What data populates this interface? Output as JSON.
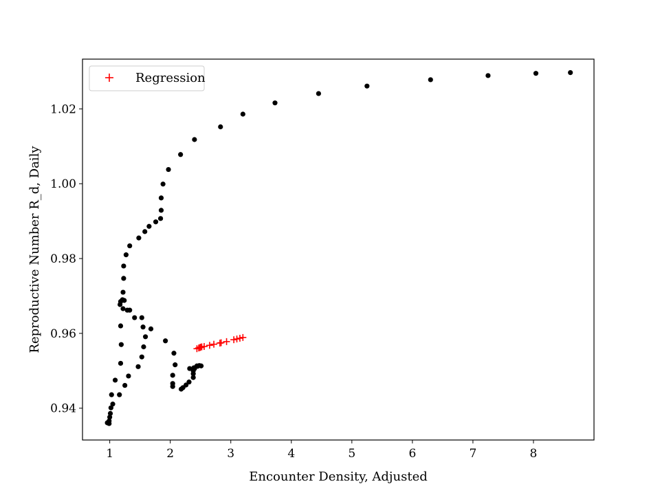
{
  "chart_data": {
    "type": "scatter",
    "title": "",
    "xlabel": "Encounter Density, Adjusted",
    "ylabel": "Reproductive Number R_d, Daily",
    "xlim": [
      0.55,
      9.0
    ],
    "ylim": [
      0.9315,
      1.0333
    ],
    "xticks": [
      1,
      2,
      3,
      4,
      5,
      6,
      7,
      8
    ],
    "yticks": [
      0.94,
      0.96,
      0.98,
      1.0,
      1.02
    ],
    "ytick_labels": [
      "0.94",
      "0.96",
      "0.98",
      "1.00",
      "1.02"
    ],
    "grid": false,
    "legend_position": "top-left",
    "series": [
      {
        "marker": "circle",
        "color": "#000000",
        "x": [
          8.61,
          8.04,
          7.25,
          6.3,
          5.25,
          4.45,
          3.73,
          3.2,
          2.83,
          2.4,
          2.17,
          1.97,
          1.88,
          1.85,
          1.85,
          1.84,
          1.76,
          1.65,
          1.58,
          1.48,
          1.33,
          1.27,
          1.23,
          1.23,
          1.22,
          1.21,
          1.18,
          1.17,
          1.24,
          1.22,
          1.33,
          1.29,
          1.41,
          1.53,
          1.68,
          1.55,
          1.59,
          1.56,
          1.53,
          1.47,
          1.31,
          1.25,
          1.16,
          1.09,
          1.03,
          1.05,
          1.02,
          1.01,
          1.0,
          0.99,
          0.98,
          0.96,
          0.99,
          1.19,
          1.18,
          1.18,
          1.92,
          2.06,
          2.08,
          2.04,
          2.04,
          2.04,
          2.18,
          2.21,
          2.26,
          2.31,
          2.38,
          2.38,
          2.32,
          2.4,
          2.38,
          2.45,
          2.48,
          2.51,
          2.44,
          2.4,
          2.39
        ],
        "y": [
          1.0297,
          1.0295,
          1.0289,
          1.0278,
          1.0261,
          1.0241,
          1.0216,
          1.0186,
          1.0152,
          1.0118,
          1.0078,
          1.0038,
          0.9999,
          0.9962,
          0.9929,
          0.9907,
          0.9898,
          0.9886,
          0.9872,
          0.9855,
          0.9834,
          0.981,
          0.978,
          0.9747,
          0.971,
          0.969,
          0.9685,
          0.9677,
          0.9688,
          0.9666,
          0.9662,
          0.9662,
          0.9642,
          0.9642,
          0.9612,
          0.9617,
          0.9591,
          0.9564,
          0.9537,
          0.9511,
          0.9486,
          0.9461,
          0.9436,
          0.9475,
          0.9436,
          0.9411,
          0.9401,
          0.9386,
          0.9376,
          0.9366,
          0.9363,
          0.9361,
          0.9359,
          0.957,
          0.952,
          0.962,
          0.958,
          0.9547,
          0.9516,
          0.9488,
          0.9466,
          0.9458,
          0.9451,
          0.9455,
          0.9462,
          0.947,
          0.9482,
          0.9492,
          0.9506,
          0.9506,
          0.95,
          0.9512,
          0.9514,
          0.9513,
          0.9513,
          0.9506,
          0.9508
        ]
      },
      {
        "name": "Regression",
        "marker": "plus",
        "color": "#ff0000",
        "x": [
          2.44,
          2.47,
          2.49,
          2.5,
          2.52,
          2.56,
          2.65,
          2.72,
          2.82,
          2.84,
          2.93,
          3.05,
          3.1,
          3.15,
          3.2
        ],
        "y": [
          0.9559,
          0.9561,
          0.9562,
          0.9563,
          0.9564,
          0.9565,
          0.9568,
          0.9571,
          0.9574,
          0.9575,
          0.9578,
          0.9583,
          0.9585,
          0.9587,
          0.9589
        ]
      }
    ]
  }
}
